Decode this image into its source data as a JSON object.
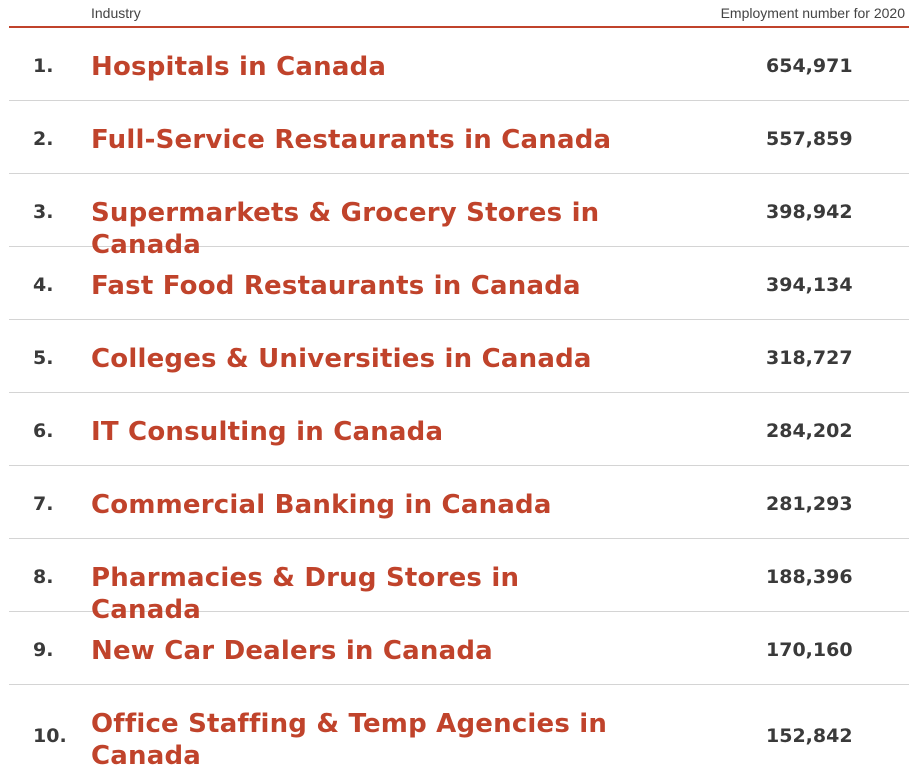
{
  "chart_data": {
    "type": "table",
    "columns": [
      "Industry",
      "Employment number for 2020"
    ],
    "rows": [
      {
        "rank": "1.",
        "industry": "Hospitals in Canada",
        "value_label": "654,971",
        "value": 654971
      },
      {
        "rank": "2.",
        "industry": "Full-Service Restaurants in Canada",
        "value_label": "557,859",
        "value": 557859
      },
      {
        "rank": "3.",
        "industry": "Supermarkets & Grocery Stores in Canada",
        "value_label": "398,942",
        "value": 398942
      },
      {
        "rank": "4.",
        "industry": "Fast Food Restaurants in Canada",
        "value_label": "394,134",
        "value": 394134
      },
      {
        "rank": "5.",
        "industry": "Colleges & Universities in Canada",
        "value_label": "318,727",
        "value": 318727
      },
      {
        "rank": "6.",
        "industry": "IT Consulting in Canada",
        "value_label": "284,202",
        "value": 284202
      },
      {
        "rank": "7.",
        "industry": "Commercial Banking in Canada",
        "value_label": "281,293",
        "value": 281293
      },
      {
        "rank": "8.",
        "industry": "Pharmacies & Drug Stores in Canada",
        "value_label": "188,396",
        "value": 188396
      },
      {
        "rank": "9.",
        "industry": "New Car Dealers in Canada",
        "value_label": "170,160",
        "value": 170160
      },
      {
        "rank": "10.",
        "industry": "Office Staffing & Temp Agencies in Canada",
        "value_label": "152,842",
        "value": 152842
      }
    ]
  },
  "colors": {
    "accent": "#c0432b",
    "text": "#3a3a3a",
    "divider": "#d4d4d4"
  }
}
